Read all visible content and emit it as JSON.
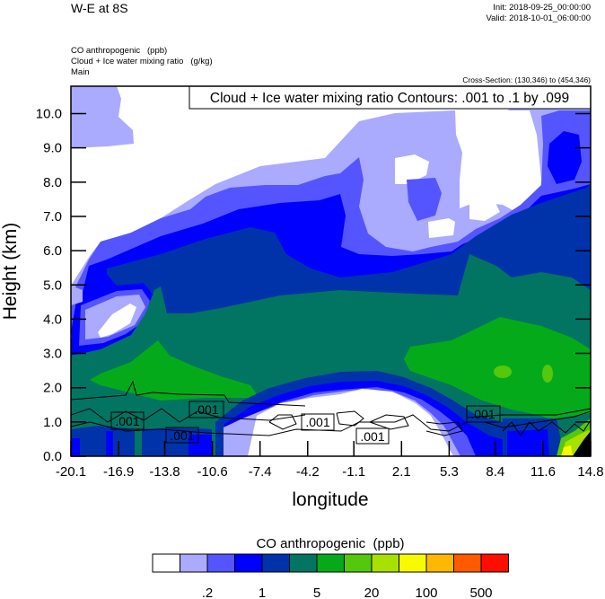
{
  "header": {
    "title": "W-E at 8S",
    "init": "Init: 2018-09-25_00:00:00",
    "valid": "Valid: 2018-10-01_06:00:00",
    "fields": [
      "CO anthropogenic   (ppb)",
      "Cloud + Ice water mixing ratio   (g/kg)",
      "Main"
    ],
    "cross_section": "Cross-Section: (130,346) to (454,346)"
  },
  "chart_data": {
    "type": "heatmap",
    "subtype": "filled contour cross-section with line contours",
    "contour_title": "Cloud + Ice water mixing ratio Contours: .001 to .1 by .099",
    "xlabel": "longitude",
    "ylabel": "Height (km)",
    "xlim": [
      -20.1,
      14.8
    ],
    "ylim": [
      0,
      10.8
    ],
    "x_ticks": [
      -20.1,
      -16.9,
      -13.8,
      -10.6,
      -7.4,
      -4.2,
      -1.1,
      2.1,
      5.3,
      8.4,
      11.6,
      14.8
    ],
    "x_tick_labels": [
      "-20.1",
      "-16.9",
      "-13.8",
      "-10.6",
      "-7.4",
      "-4.2",
      "-1.1",
      "2.1",
      "5.3",
      "8.4",
      "11.6",
      "14.8"
    ],
    "y_ticks": [
      0,
      1,
      2,
      3,
      4,
      5,
      6,
      7,
      8,
      9,
      10
    ],
    "y_tick_labels": [
      "0.0",
      "1.0",
      "2.0",
      "3.0",
      "4.0",
      "5.0",
      "6.0",
      "7.0",
      "8.0",
      "9.0",
      "10.0"
    ],
    "contour_labels": [
      ".001",
      ".001",
      ".001",
      ".001",
      ".001",
      ".001"
    ],
    "grid": false,
    "colorbar": {
      "title": "CO anthropogenic  (ppb)",
      "placement": "bottom",
      "colors": [
        "#ffffff",
        "#aaaaff",
        "#5555ff",
        "#0000ff",
        "#0033aa",
        "#027462",
        "#05aa1a",
        "#55c80c",
        "#a8e000",
        "#f8fa00",
        "#ffb800",
        "#ff5a00",
        "#ff0e00"
      ],
      "tick_labels": [
        ".2",
        "1",
        "5",
        "20",
        "100",
        "500"
      ]
    }
  }
}
